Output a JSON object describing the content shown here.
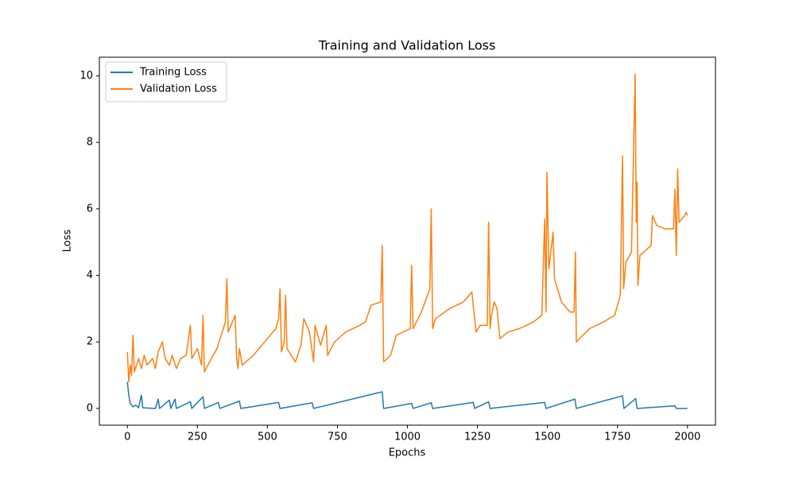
{
  "chart_data": {
    "type": "line",
    "title": "Training and Validation Loss",
    "xlabel": "Epochs",
    "ylabel": "Loss",
    "xlim": [
      -100,
      2100
    ],
    "ylim": [
      -0.503,
      10.56
    ],
    "xticks": [
      0,
      250,
      500,
      750,
      1000,
      1250,
      1500,
      1750,
      2000
    ],
    "yticks": [
      0,
      2,
      4,
      6,
      8,
      10
    ],
    "legend": "upper left",
    "series": [
      {
        "name": "Training Loss",
        "color": "#1f77b4",
        "x": [
          0,
          5,
          10,
          20,
          30,
          40,
          50,
          55,
          100,
          110,
          115,
          150,
          155,
          170,
          175,
          225,
          230,
          270,
          275,
          325,
          330,
          400,
          405,
          540,
          545,
          660,
          665,
          910,
          915,
          1015,
          1020,
          1085,
          1090,
          1235,
          1240,
          1290,
          1295,
          1490,
          1495,
          1598,
          1603,
          1768,
          1773,
          1815,
          1820,
          1955,
          1960,
          2000
        ],
        "values": [
          0.8,
          0.4,
          0.15,
          0.05,
          0.1,
          0.02,
          0.4,
          0.02,
          0.0,
          0.28,
          0.0,
          0.25,
          0.0,
          0.28,
          0.0,
          0.2,
          0.0,
          0.35,
          0.0,
          0.18,
          0.0,
          0.22,
          0.0,
          0.18,
          0.0,
          0.17,
          0.0,
          0.5,
          0.0,
          0.15,
          0.0,
          0.17,
          0.0,
          0.18,
          0.0,
          0.2,
          0.0,
          0.18,
          0.0,
          0.28,
          0.0,
          0.38,
          0.0,
          0.3,
          0.0,
          0.08,
          0.0,
          0.0
        ]
      },
      {
        "name": "Validation Loss",
        "color": "#ff7f0e",
        "x": [
          0,
          5,
          10,
          15,
          20,
          25,
          40,
          50,
          60,
          70,
          90,
          100,
          110,
          125,
          135,
          150,
          160,
          175,
          190,
          210,
          225,
          230,
          250,
          265,
          270,
          275,
          300,
          320,
          350,
          355,
          360,
          370,
          385,
          390,
          395,
          400,
          410,
          450,
          500,
          530,
          540,
          545,
          550,
          560,
          565,
          570,
          600,
          620,
          630,
          650,
          665,
          670,
          690,
          700,
          710,
          715,
          740,
          780,
          830,
          850,
          870,
          905,
          910,
          915,
          940,
          960,
          1010,
          1015,
          1020,
          1050,
          1080,
          1085,
          1090,
          1100,
          1150,
          1200,
          1230,
          1245,
          1260,
          1285,
          1290,
          1295,
          1300,
          1310,
          1320,
          1330,
          1360,
          1400,
          1450,
          1480,
          1490,
          1495,
          1498,
          1505,
          1520,
          1525,
          1550,
          1580,
          1595,
          1600,
          1603,
          1650,
          1700,
          1740,
          1760,
          1768,
          1772,
          1780,
          1800,
          1813,
          1817,
          1820,
          1823,
          1830,
          1870,
          1875,
          1890,
          1920,
          1950,
          1955,
          1960,
          1965,
          1970,
          1990,
          1995,
          2000
        ],
        "values": [
          1.7,
          0.8,
          1.3,
          1.0,
          2.2,
          1.1,
          1.5,
          1.2,
          1.6,
          1.3,
          1.5,
          1.2,
          1.7,
          2.0,
          1.5,
          1.3,
          1.6,
          1.2,
          1.5,
          1.6,
          2.5,
          1.5,
          1.8,
          1.3,
          2.8,
          1.1,
          1.5,
          1.8,
          2.6,
          3.9,
          2.3,
          2.5,
          2.8,
          1.5,
          1.2,
          1.8,
          1.3,
          1.6,
          2.1,
          2.4,
          2.7,
          3.6,
          1.7,
          2.0,
          3.4,
          1.8,
          1.4,
          1.9,
          2.7,
          2.3,
          1.4,
          2.5,
          1.9,
          2.2,
          2.5,
          1.6,
          2.0,
          2.3,
          2.5,
          2.6,
          3.1,
          3.2,
          4.9,
          1.4,
          1.6,
          2.2,
          2.4,
          4.3,
          2.4,
          2.9,
          3.6,
          6.0,
          2.4,
          2.7,
          3.0,
          3.2,
          3.5,
          2.3,
          2.5,
          2.5,
          5.6,
          2.4,
          2.8,
          3.2,
          3.0,
          2.1,
          2.3,
          2.4,
          2.6,
          2.8,
          5.7,
          2.9,
          7.1,
          4.2,
          5.3,
          3.9,
          3.2,
          2.9,
          2.9,
          4.7,
          2.0,
          2.4,
          2.6,
          2.8,
          3.4,
          7.6,
          3.6,
          4.4,
          4.7,
          10.05,
          5.6,
          6.8,
          3.7,
          4.6,
          4.9,
          5.8,
          5.5,
          5.4,
          5.4,
          6.6,
          4.6,
          7.2,
          5.6,
          5.8,
          5.9,
          5.8
        ]
      }
    ]
  }
}
